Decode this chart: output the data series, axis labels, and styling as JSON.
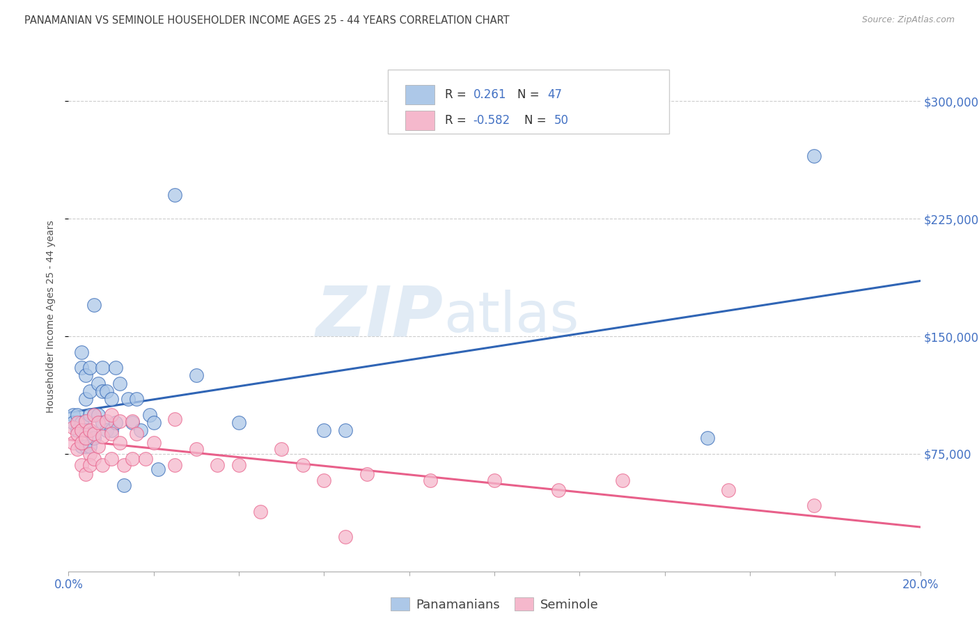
{
  "title": "PANAMANIAN VS SEMINOLE HOUSEHOLDER INCOME AGES 25 - 44 YEARS CORRELATION CHART",
  "source": "Source: ZipAtlas.com",
  "ylabel": "Householder Income Ages 25 - 44 years",
  "xlim": [
    0.0,
    0.2
  ],
  "ylim": [
    0,
    325000
  ],
  "yticks": [
    75000,
    150000,
    225000,
    300000
  ],
  "ytick_labels": [
    "$75,000",
    "$150,000",
    "$225,000",
    "$300,000"
  ],
  "watermark_zip": "ZIP",
  "watermark_atlas": "atlas",
  "panamanian_color": "#adc8e8",
  "seminole_color": "#f5b8cc",
  "panamanian_line_color": "#3065b5",
  "seminole_line_color": "#e8608a",
  "legend_label1": "Panamanians",
  "legend_label2": "Seminole",
  "tick_label_color": "#4472c4",
  "title_color": "#404040",
  "grid_color": "#cccccc",
  "pan_x": [
    0.001,
    0.001,
    0.002,
    0.002,
    0.003,
    0.003,
    0.003,
    0.003,
    0.004,
    0.004,
    0.004,
    0.004,
    0.005,
    0.005,
    0.005,
    0.005,
    0.005,
    0.006,
    0.006,
    0.006,
    0.007,
    0.007,
    0.008,
    0.008,
    0.008,
    0.009,
    0.009,
    0.01,
    0.01,
    0.011,
    0.011,
    0.012,
    0.013,
    0.014,
    0.015,
    0.016,
    0.017,
    0.019,
    0.02,
    0.021,
    0.025,
    0.03,
    0.04,
    0.06,
    0.065,
    0.15,
    0.175
  ],
  "pan_y": [
    100000,
    95000,
    100000,
    90000,
    140000,
    130000,
    95000,
    80000,
    125000,
    110000,
    90000,
    80000,
    130000,
    115000,
    100000,
    90000,
    80000,
    170000,
    100000,
    85000,
    120000,
    100000,
    130000,
    115000,
    95000,
    115000,
    90000,
    110000,
    90000,
    130000,
    95000,
    120000,
    55000,
    110000,
    95000,
    110000,
    90000,
    100000,
    95000,
    65000,
    240000,
    125000,
    95000,
    90000,
    90000,
    85000,
    265000
  ],
  "sem_x": [
    0.001,
    0.001,
    0.002,
    0.002,
    0.002,
    0.003,
    0.003,
    0.003,
    0.004,
    0.004,
    0.004,
    0.005,
    0.005,
    0.005,
    0.006,
    0.006,
    0.006,
    0.007,
    0.007,
    0.008,
    0.008,
    0.009,
    0.01,
    0.01,
    0.01,
    0.012,
    0.012,
    0.013,
    0.015,
    0.015,
    0.016,
    0.018,
    0.02,
    0.025,
    0.025,
    0.03,
    0.035,
    0.04,
    0.045,
    0.05,
    0.055,
    0.06,
    0.065,
    0.07,
    0.085,
    0.1,
    0.115,
    0.13,
    0.155,
    0.175
  ],
  "sem_y": [
    92000,
    82000,
    95000,
    88000,
    78000,
    90000,
    82000,
    68000,
    96000,
    85000,
    62000,
    90000,
    75000,
    68000,
    100000,
    88000,
    72000,
    95000,
    80000,
    86000,
    68000,
    96000,
    100000,
    88000,
    72000,
    96000,
    82000,
    68000,
    96000,
    72000,
    88000,
    72000,
    82000,
    97000,
    68000,
    78000,
    68000,
    68000,
    38000,
    78000,
    68000,
    58000,
    22000,
    62000,
    58000,
    58000,
    52000,
    58000,
    52000,
    42000
  ]
}
